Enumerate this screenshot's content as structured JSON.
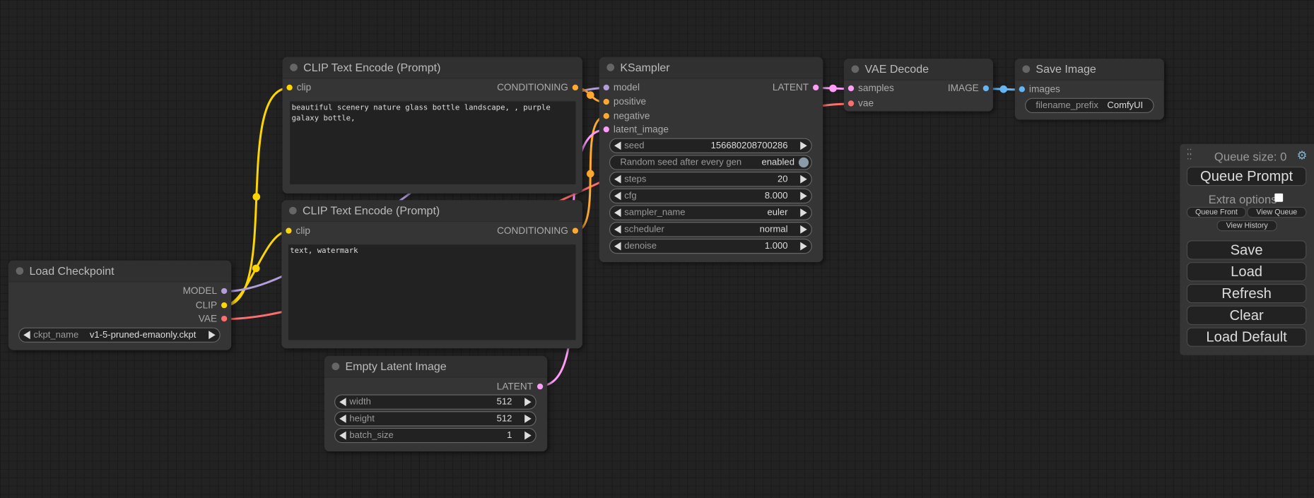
{
  "colors": {
    "clip": "#ffd500",
    "model": "#b39ddb",
    "vae": "#ff6e6e",
    "conditioning": "#ffa931",
    "latent": "#ff9cf9",
    "image": "#64b5f6"
  },
  "nodes": {
    "clip_pos": {
      "title": "CLIP Text Encode (Prompt)",
      "input": "clip",
      "output": "CONDITIONING",
      "text": "beautiful scenery nature glass bottle landscape, , purple galaxy bottle,"
    },
    "clip_neg": {
      "title": "CLIP Text Encode (Prompt)",
      "input": "clip",
      "output": "CONDITIONING",
      "text": "text, watermark"
    },
    "checkpoint": {
      "title": "Load Checkpoint",
      "outputs": [
        "MODEL",
        "CLIP",
        "VAE"
      ],
      "ckpt_label": "ckpt_name",
      "ckpt_value": "v1-5-pruned-emaonly.ckpt"
    },
    "latent": {
      "title": "Empty Latent Image",
      "output": "LATENT",
      "widgets": [
        {
          "label": "width",
          "value": "512"
        },
        {
          "label": "height",
          "value": "512"
        },
        {
          "label": "batch_size",
          "value": "1"
        }
      ]
    },
    "ksampler": {
      "title": "KSampler",
      "inputs": [
        "model",
        "positive",
        "negative",
        "latent_image"
      ],
      "output": "LATENT",
      "seed": {
        "label": "seed",
        "value": "156680208700286"
      },
      "random_seed": {
        "label": "Random seed after every gen",
        "value": "enabled"
      },
      "widgets": [
        {
          "label": "steps",
          "value": "20"
        },
        {
          "label": "cfg",
          "value": "8.000"
        },
        {
          "label": "sampler_name",
          "value": "euler"
        },
        {
          "label": "scheduler",
          "value": "normal"
        },
        {
          "label": "denoise",
          "value": "1.000"
        }
      ]
    },
    "vae_decode": {
      "title": "VAE Decode",
      "inputs": [
        "samples",
        "vae"
      ],
      "output": "IMAGE"
    },
    "save_image": {
      "title": "Save Image",
      "input": "images",
      "prefix_label": "filename_prefix",
      "prefix_value": "ComfyUI"
    }
  },
  "menu": {
    "queue_size": "Queue size: 0",
    "queue_prompt": "Queue Prompt",
    "extra_options": "Extra options",
    "queue_front": "Queue Front",
    "view_queue": "View Queue",
    "view_history": "View History",
    "save": "Save",
    "load": "Load",
    "refresh": "Refresh",
    "clear": "Clear",
    "load_default": "Load Default"
  }
}
